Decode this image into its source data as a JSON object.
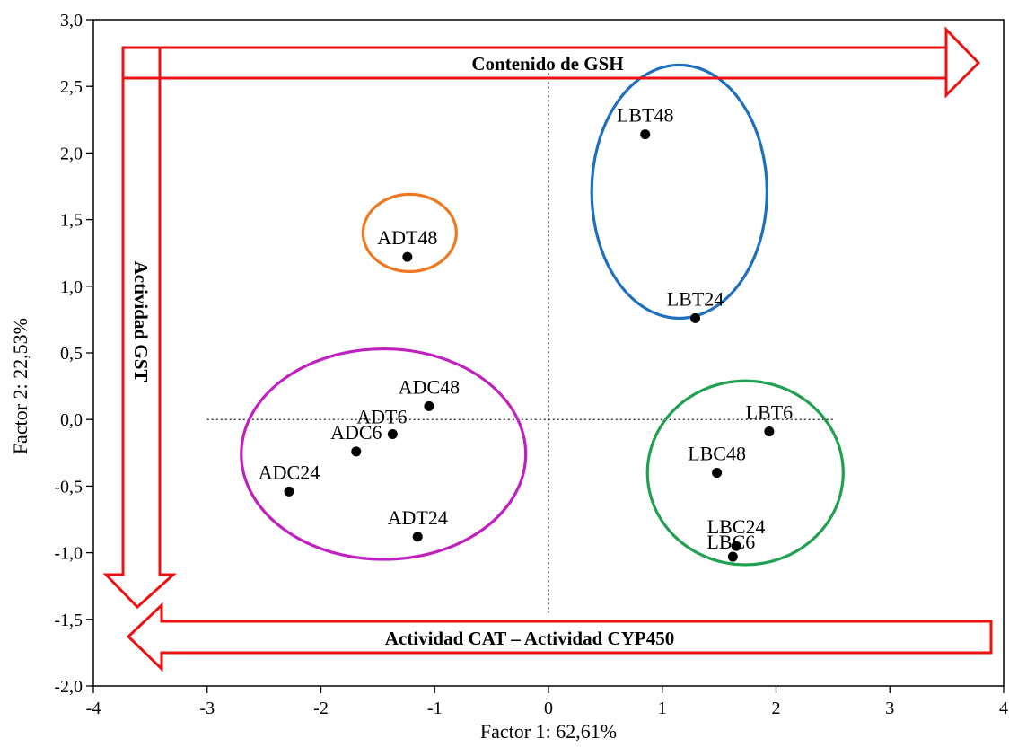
{
  "chart_data": {
    "type": "scatter",
    "xlabel": "Factor 1: 62,61%",
    "ylabel": "Factor 2: 22,53%",
    "xlim": [
      -4,
      4
    ],
    "ylim": [
      -2,
      3
    ],
    "x_ticks": [
      "-4",
      "-3",
      "-2",
      "-1",
      "0",
      "1",
      "2",
      "3",
      "4"
    ],
    "y_ticks": [
      "-2,0",
      "-1,5",
      "-1,0",
      "-0,5",
      "0,0",
      "0,5",
      "1,0",
      "1,5",
      "2,0",
      "2,5",
      "3,0"
    ],
    "points": [
      {
        "label": "LBT48",
        "x": 0.85,
        "y": 2.14
      },
      {
        "label": "LBT24",
        "x": 1.29,
        "y": 0.76
      },
      {
        "label": "ADT48",
        "x": -1.24,
        "y": 1.22
      },
      {
        "label": "ADC48",
        "x": -1.05,
        "y": 0.1
      },
      {
        "label": "ADT6",
        "x": -1.37,
        "y": -0.11
      },
      {
        "label": "ADC6",
        "x": -1.69,
        "y": -0.24
      },
      {
        "label": "ADC24",
        "x": -2.28,
        "y": -0.54
      },
      {
        "label": "ADT24",
        "x": -1.15,
        "y": -0.88
      },
      {
        "label": "LBT6",
        "x": 1.94,
        "y": -0.09
      },
      {
        "label": "LBC48",
        "x": 1.48,
        "y": -0.4
      },
      {
        "label": "LBC24",
        "x": 1.65,
        "y": -0.95
      },
      {
        "label": "LBC6",
        "x": 1.62,
        "y": -1.03
      }
    ],
    "groups": [
      {
        "members": [
          "LBT48",
          "LBT24"
        ],
        "color": "#1f6fbf",
        "cx": 1.15,
        "cy": 1.71,
        "rx": 0.77,
        "ry": 0.95
      },
      {
        "members": [
          "ADT48"
        ],
        "color": "#f07820",
        "cx": -1.22,
        "cy": 1.4,
        "rx": 0.41,
        "ry": 0.29
      },
      {
        "members": [
          "ADC48",
          "ADT6",
          "ADC6",
          "ADC24",
          "ADT24"
        ],
        "color": "#c020c0",
        "cx": -1.45,
        "cy": -0.26,
        "rx": 1.25,
        "ry": 0.79
      },
      {
        "members": [
          "LBT6",
          "LBC48",
          "LBC24",
          "LBC6"
        ],
        "color": "#20a050",
        "cx": 1.73,
        "cy": -0.4,
        "rx": 0.86,
        "ry": 0.69
      }
    ],
    "arrows": [
      {
        "label": "Contenido de GSH",
        "direction": "right",
        "color": "#ee1111"
      },
      {
        "label": "Actividad GST",
        "direction": "down",
        "color": "#ee1111"
      },
      {
        "label": "Actividad CAT – Actividad CYP450",
        "direction": "left",
        "color": "#ee1111"
      }
    ],
    "reference_lines": {
      "x": 0,
      "y": 0,
      "style": "dotted"
    }
  }
}
